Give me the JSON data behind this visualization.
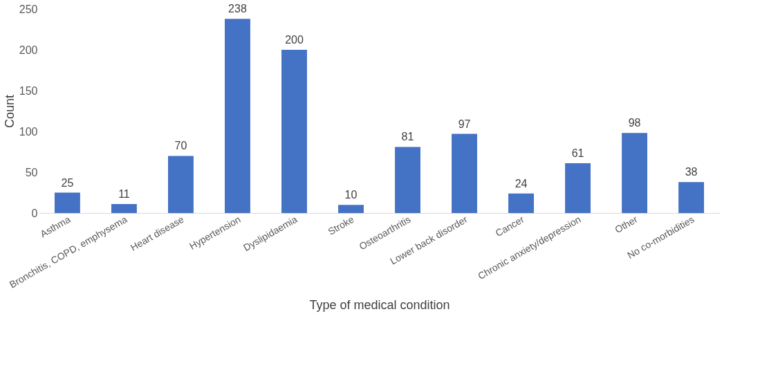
{
  "chart_data": {
    "type": "bar",
    "xlabel": "Type of medical condition",
    "ylabel": "Count",
    "categories": [
      "Asthma",
      "Bronchitis, COPD, emphysema",
      "Heart disease",
      "Hypertension",
      "Dyslipidaemia",
      "Stroke",
      "Osteoarthritis",
      "Lower back disorder",
      "Cancer",
      "Chronic anxiety/depression",
      "Other",
      "No co-morbidities"
    ],
    "values": [
      25,
      11,
      70,
      238,
      200,
      10,
      81,
      97,
      24,
      61,
      98,
      38
    ],
    "color": "#4472c4",
    "ylim": [
      0,
      250
    ],
    "yticks": [
      0,
      50,
      100,
      150,
      200,
      250
    ],
    "grid": false,
    "data_labels": true
  }
}
